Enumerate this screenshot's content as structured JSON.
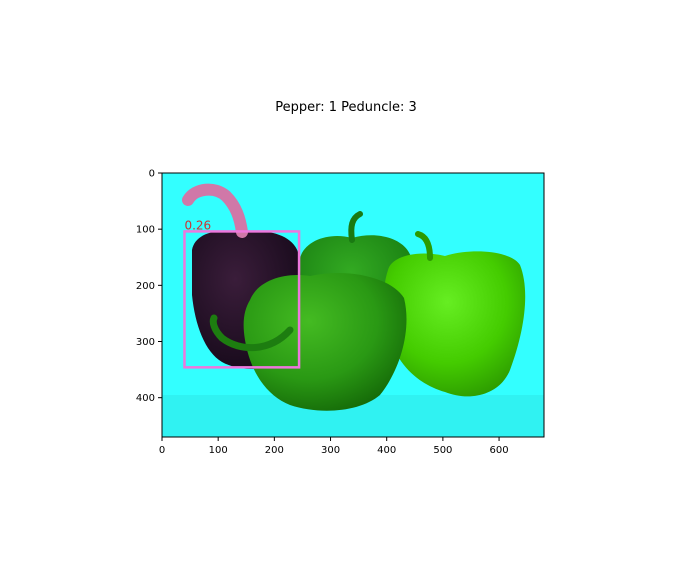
{
  "figure": {
    "title": "Pepper: 1 Peduncle: 3"
  },
  "chart_data": {
    "type": "image",
    "title": "Pepper: 1 Peduncle: 3",
    "xlim": [
      0,
      680
    ],
    "ylim": [
      470,
      0
    ],
    "xticks": [
      0,
      100,
      200,
      300,
      400,
      500,
      600
    ],
    "yticks": [
      0,
      100,
      200,
      300,
      400
    ],
    "grid": false,
    "image_background_color": "#33ffff",
    "detections": [
      {
        "label": "0.26",
        "x0": 40,
        "y0": 104,
        "x1": 244,
        "y1": 346,
        "color": "#ee77dd"
      }
    ]
  }
}
